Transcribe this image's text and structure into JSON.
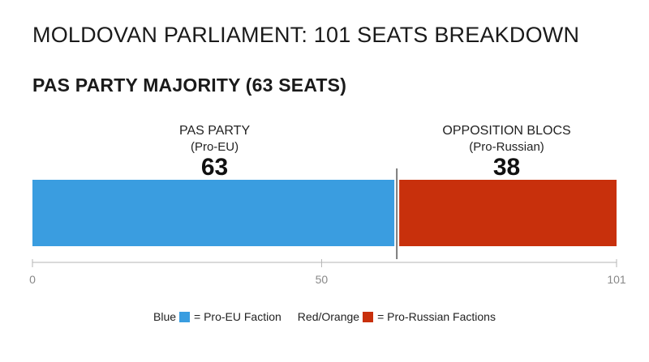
{
  "page": {
    "title": "MOLDOVAN PARLIAMENT: 101 SEATS BREAKDOWN",
    "subtitle": "PAS PARTY MAJORITY (63 SEATS)"
  },
  "chart_data": {
    "type": "bar",
    "orientation": "horizontal-stacked",
    "total": 101,
    "xlim": [
      0,
      101
    ],
    "xticks": [
      "0",
      "50",
      "101"
    ],
    "grid": false,
    "series": [
      {
        "label": "PAS PARTY",
        "sublabel": "(Pro-EU)",
        "value": 63,
        "color": "#3a9de0"
      },
      {
        "label": "OPPOSITION BLOCS",
        "sublabel": "(Pro-Russian)",
        "value": 38,
        "color": "#c8300c"
      }
    ],
    "legend": [
      {
        "prefix": "Blue",
        "text": "= Pro-EU Faction",
        "color": "#3a9de0"
      },
      {
        "prefix": "Red/Orange",
        "text": "= Pro-Russian Factions",
        "color": "#c8300c"
      }
    ],
    "legend_position": "bottom"
  }
}
